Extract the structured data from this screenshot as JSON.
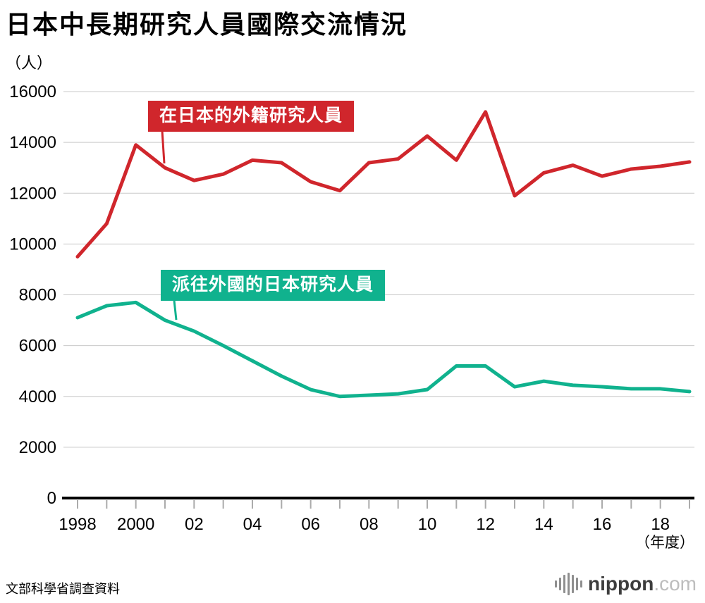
{
  "title": "日本中長期研究人員國際交流情況",
  "y_axis_unit": "（人）",
  "x_axis_unit": "（年度）",
  "source": "文部科學省調查資料",
  "logo": {
    "icon": "equalizer-bars-icon",
    "brand": "nippon",
    "suffix": ".com"
  },
  "chart_data": {
    "type": "line",
    "title": "日本中長期研究人員國際交流情況",
    "ylabel": "（人）",
    "xlabel": "（年度）",
    "ylim": [
      0,
      16000
    ],
    "ytick_step": 2000,
    "grid": true,
    "x": [
      1998,
      1999,
      2000,
      2001,
      2002,
      2003,
      2004,
      2005,
      2006,
      2007,
      2008,
      2009,
      2010,
      2011,
      2012,
      2013,
      2014,
      2015,
      2016,
      2017,
      2018,
      2019
    ],
    "x_tick_labels": [
      "1998",
      "",
      "2000",
      "",
      "02",
      "",
      "04",
      "",
      "06",
      "",
      "08",
      "",
      "10",
      "",
      "12",
      "",
      "14",
      "",
      "16",
      "",
      "18",
      ""
    ],
    "series": [
      {
        "name": "在日本的外籍研究人員",
        "color": "#d0262c",
        "values": [
          9500,
          10800,
          13900,
          13000,
          12500,
          12750,
          13300,
          13200,
          12450,
          12100,
          13200,
          13350,
          14250,
          13300,
          15200,
          11900,
          12800,
          13100,
          12670,
          12950,
          13060,
          13230
        ]
      },
      {
        "name": "派往外國的日本研究人員",
        "color": "#10b28e",
        "values": [
          7100,
          7570,
          7700,
          7000,
          6570,
          6000,
          5400,
          4800,
          4270,
          4000,
          4050,
          4100,
          4270,
          5200,
          5200,
          4380,
          4600,
          4440,
          4380,
          4300,
          4300,
          4190
        ]
      }
    ]
  }
}
